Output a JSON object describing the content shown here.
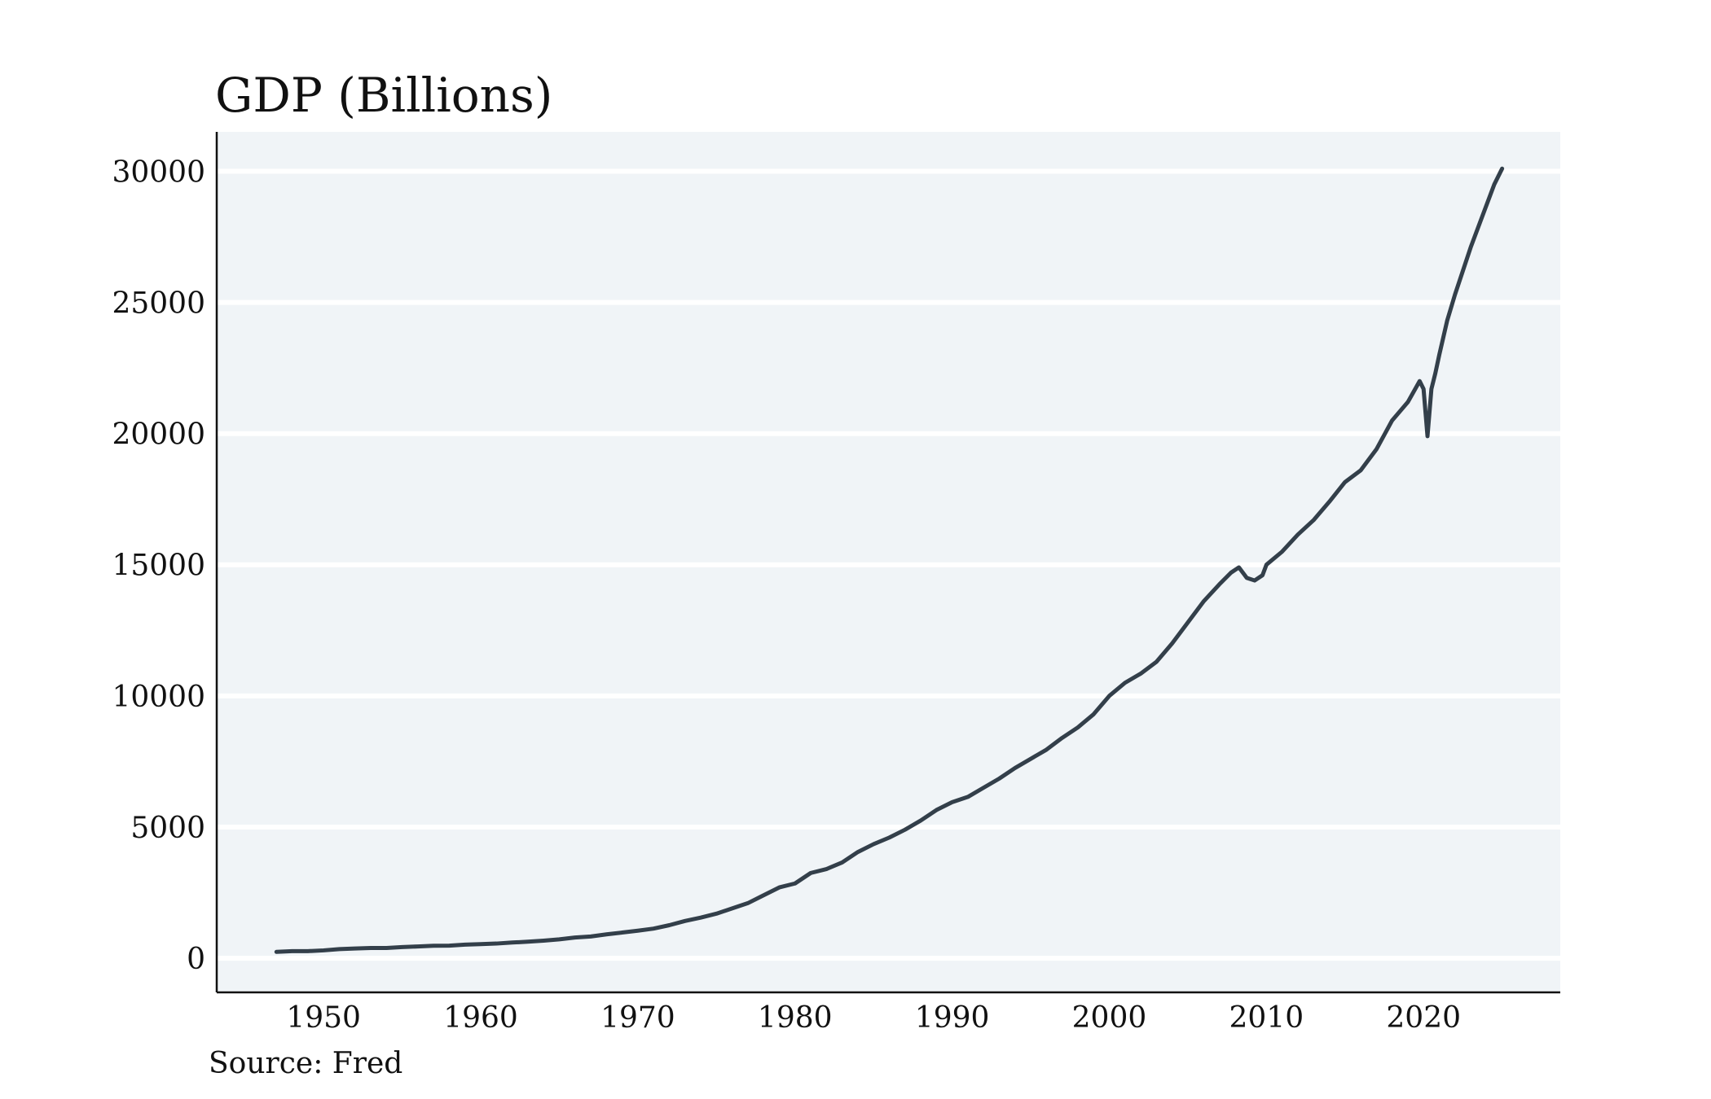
{
  "chart_data": {
    "type": "line",
    "title": "GDP (Billions)",
    "source": "Source: Fred",
    "xlabel": "",
    "ylabel": "",
    "xlim": [
      1943.2,
      2028.7
    ],
    "ylim": [
      -1300,
      31500
    ],
    "x_ticks": [
      1950,
      1960,
      1970,
      1980,
      1990,
      2000,
      2010,
      2020
    ],
    "y_ticks": [
      0,
      5000,
      10000,
      15000,
      20000,
      25000,
      30000
    ],
    "grid": "horizontal",
    "colors": {
      "line": "#333f4a",
      "plot_background": "#f0f4f7",
      "grid": "#ffffff",
      "axis": "#111111"
    },
    "series": [
      {
        "x": [
          1947,
          1948,
          1949,
          1950,
          1951,
          1952,
          1953,
          1954,
          1955,
          1956,
          1957,
          1958,
          1959,
          1960,
          1961,
          1962,
          1963,
          1964,
          1965,
          1966,
          1967,
          1968,
          1969,
          1970,
          1971,
          1972,
          1973,
          1974,
          1975,
          1976,
          1977,
          1978,
          1979,
          1980,
          1981,
          1982,
          1983,
          1984,
          1985,
          1986,
          1987,
          1988,
          1989,
          1990,
          1991,
          1992,
          1993,
          1994,
          1995,
          1996,
          1997,
          1998,
          1999,
          2000,
          2001,
          2002,
          2003,
          2004,
          2005,
          2006,
          2007,
          2007.75,
          2008.25,
          2008.75,
          2009.25,
          2009.75,
          2010,
          2011,
          2012,
          2013,
          2014,
          2015,
          2016,
          2017,
          2018,
          2019,
          2019.75,
          2020.0,
          2020.25,
          2020.5,
          2020.75,
          2021,
          2021.5,
          2022,
          2022.5,
          2023,
          2023.5,
          2024,
          2024.5,
          2025
        ],
        "values": [
          243,
          270,
          272,
          300,
          350,
          370,
          390,
          391,
          425,
          450,
          475,
          480,
          520,
          540,
          560,
          600,
          630,
          670,
          720,
          790,
          830,
          910,
          980,
          1050,
          1130,
          1260,
          1420,
          1550,
          1700,
          1900,
          2100,
          2400,
          2700,
          2850,
          3250,
          3400,
          3650,
          4050,
          4350,
          4600,
          4900,
          5250,
          5650,
          5950,
          6150,
          6500,
          6850,
          7250,
          7600,
          7950,
          8400,
          8800,
          9300,
          10000,
          10500,
          10850,
          11300,
          12000,
          12800,
          13600,
          14250,
          14700,
          14900,
          14500,
          14400,
          14600,
          15000,
          15500,
          16150,
          16700,
          17400,
          18150,
          18600,
          19400,
          20500,
          21200,
          22000,
          21700,
          19900,
          21700,
          22300,
          23000,
          24300,
          25300,
          26200,
          27100,
          27900,
          28700,
          29500,
          30100
        ]
      }
    ]
  }
}
